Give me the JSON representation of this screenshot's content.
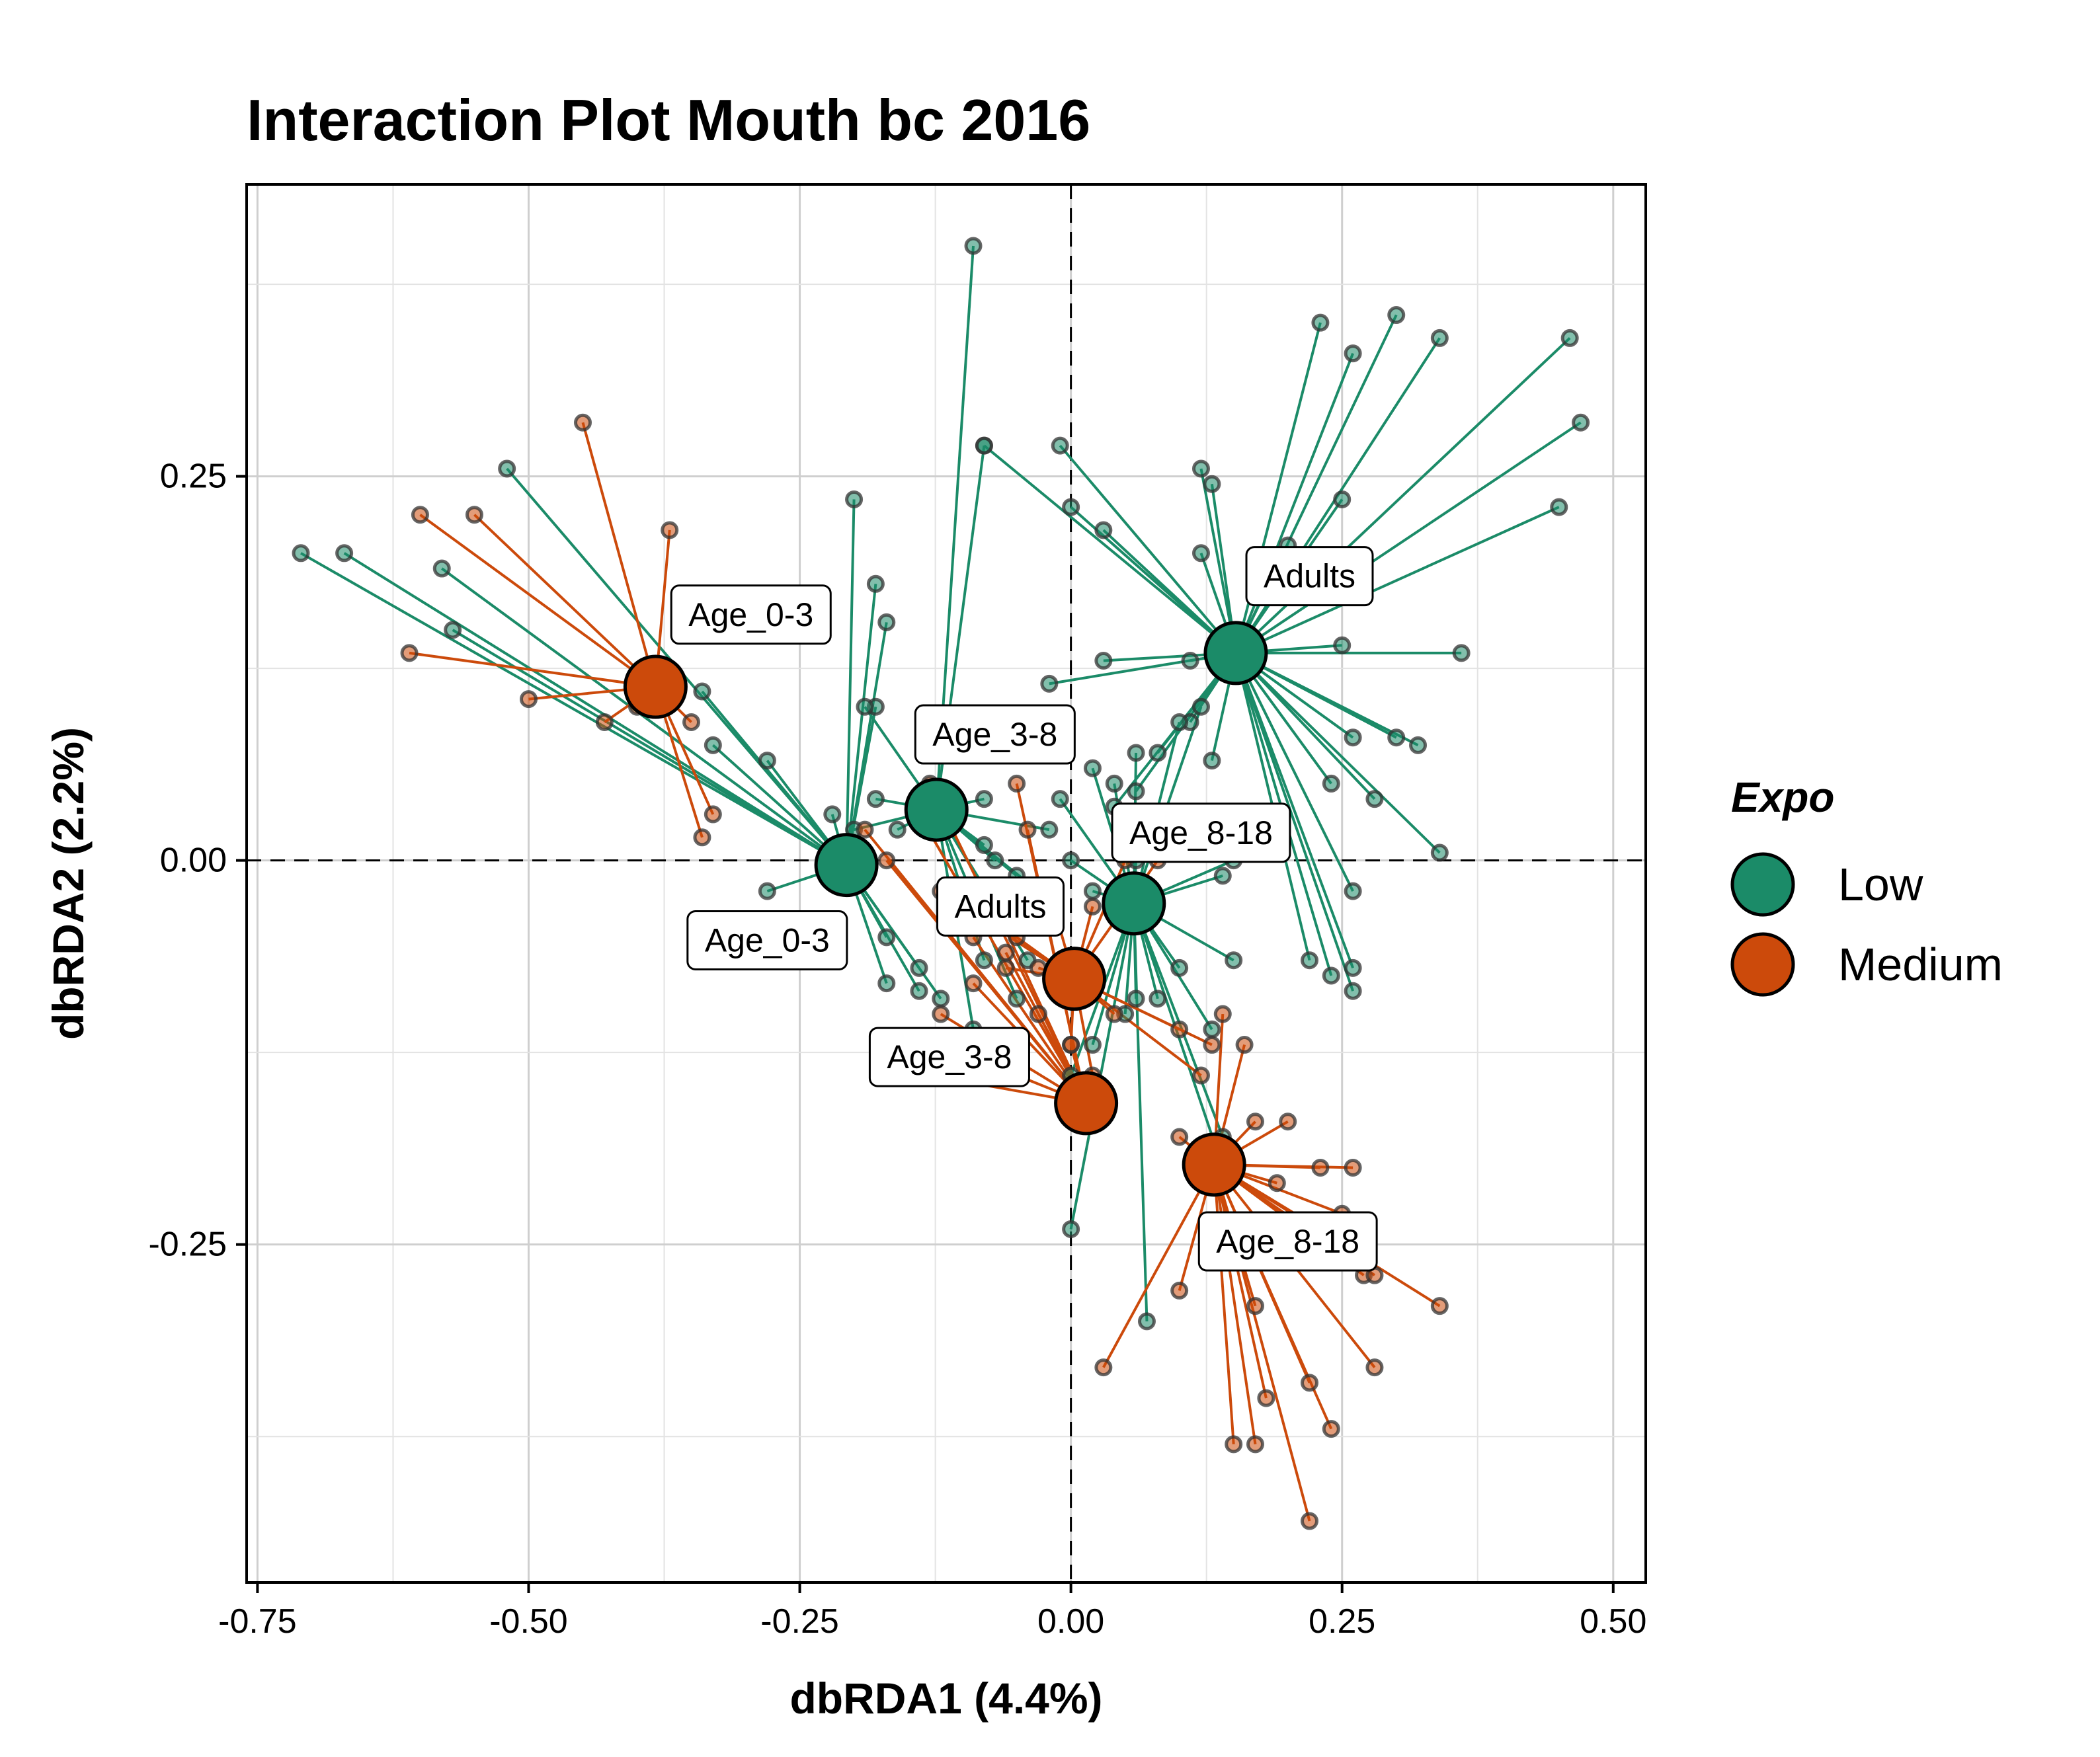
{
  "chart_data": {
    "type": "scatter",
    "title": "Interaction Plot Mouth bc 2016",
    "xlabel": "dbRDA1 (4.4%)",
    "ylabel": "dbRDA2 (2.2%)",
    "xlim": [
      -0.76,
      0.53
    ],
    "ylim": [
      -0.47,
      0.44
    ],
    "xticks": [
      -0.75,
      -0.5,
      -0.25,
      0.0,
      0.25,
      0.5
    ],
    "xtick_labels": [
      "-0.75",
      "-0.50",
      "-0.25",
      "0.00",
      "0.25",
      "0.50"
    ],
    "yticks": [
      -0.25,
      0.0,
      0.25
    ],
    "ytick_labels": [
      "-0.25",
      "0.00",
      "0.25"
    ],
    "grid": true,
    "reference_lines": {
      "x": 0,
      "y": 0,
      "style": "dashed"
    },
    "legend": {
      "title": "Expo",
      "placement": "right",
      "entries": [
        {
          "label": "Low",
          "color": "#1B8B68"
        },
        {
          "label": "Medium",
          "color": "#CC4A0B"
        }
      ]
    },
    "colors": {
      "Low": "#1B8B68",
      "Medium": "#CC4A0B"
    },
    "groups": [
      {
        "expo": "Low",
        "age": "Adults",
        "label": "Adults",
        "centroid": [
          0.152,
          0.135
        ],
        "label_pos": [
          0.22,
          0.185
        ],
        "points": [
          [
            0.23,
            0.35
          ],
          [
            0.26,
            0.33
          ],
          [
            0.3,
            0.355
          ],
          [
            0.34,
            0.34
          ],
          [
            0.46,
            0.34
          ],
          [
            0.47,
            0.285
          ],
          [
            0.45,
            0.23
          ],
          [
            0.36,
            0.135
          ],
          [
            0.25,
            0.235
          ],
          [
            0.2,
            0.205
          ],
          [
            0.12,
            0.255
          ],
          [
            0.13,
            0.245
          ],
          [
            0.12,
            0.2
          ],
          [
            0.03,
            0.215
          ],
          [
            0.0,
            0.23
          ],
          [
            -0.01,
            0.27
          ],
          [
            -0.08,
            0.27
          ],
          [
            0.03,
            0.13
          ],
          [
            -0.02,
            0.115
          ],
          [
            0.11,
            0.13
          ],
          [
            0.25,
            0.14
          ],
          [
            0.26,
            0.08
          ],
          [
            0.3,
            0.08
          ],
          [
            0.32,
            0.075
          ],
          [
            0.28,
            0.04
          ],
          [
            0.34,
            0.005
          ],
          [
            0.24,
            0.05
          ],
          [
            0.26,
            -0.02
          ],
          [
            0.26,
            -0.07
          ],
          [
            0.26,
            -0.085
          ],
          [
            0.24,
            -0.075
          ],
          [
            0.22,
            -0.065
          ],
          [
            0.13,
            0.065
          ],
          [
            0.11,
            0.09
          ],
          [
            0.08,
            0.07
          ],
          [
            0.06,
            0.045
          ],
          [
            0.04,
            0.035
          ]
        ]
      },
      {
        "expo": "Low",
        "age": "Age_0-3",
        "label": "Age_0-3",
        "centroid": [
          -0.207,
          -0.003
        ],
        "label_pos": [
          -0.28,
          -0.052
        ],
        "points": [
          [
            -0.71,
            0.2
          ],
          [
            -0.67,
            0.2
          ],
          [
            -0.58,
            0.19
          ],
          [
            -0.57,
            0.15
          ],
          [
            -0.52,
            0.255
          ],
          [
            -0.34,
            0.11
          ],
          [
            -0.33,
            0.075
          ],
          [
            -0.28,
            0.065
          ],
          [
            -0.18,
            0.1
          ],
          [
            -0.2,
            0.235
          ],
          [
            -0.18,
            0.18
          ],
          [
            -0.17,
            0.155
          ],
          [
            -0.22,
            0.03
          ],
          [
            -0.28,
            -0.02
          ],
          [
            -0.17,
            -0.05
          ],
          [
            -0.17,
            -0.08
          ],
          [
            -0.14,
            -0.07
          ],
          [
            -0.14,
            -0.085
          ],
          [
            -0.12,
            -0.09
          ]
        ]
      },
      {
        "expo": "Low",
        "age": "Age_3-8",
        "label": "Age_3-8",
        "centroid": [
          -0.124,
          0.033
        ],
        "label_pos": [
          -0.07,
          0.082
        ],
        "points": [
          [
            -0.09,
            0.4
          ],
          [
            -0.08,
            0.27
          ],
          [
            -0.19,
            0.1
          ],
          [
            -0.18,
            0.04
          ],
          [
            -0.2,
            0.02
          ],
          [
            -0.16,
            0.02
          ],
          [
            -0.08,
            0.04
          ],
          [
            -0.08,
            0.01
          ],
          [
            -0.07,
            0.0
          ],
          [
            -0.05,
            -0.01
          ],
          [
            -0.02,
            0.02
          ],
          [
            -0.03,
            -0.02
          ],
          [
            -0.06,
            -0.04
          ],
          [
            -0.08,
            -0.065
          ],
          [
            -0.04,
            -0.065
          ],
          [
            -0.09,
            -0.11
          ],
          [
            -0.05,
            -0.09
          ]
        ]
      },
      {
        "expo": "Low",
        "age": "Age_8-18",
        "label": "Age_8-18",
        "centroid": [
          0.058,
          -0.028
        ],
        "label_pos": [
          0.12,
          0.018
        ],
        "points": [
          [
            0.02,
            0.06
          ],
          [
            0.04,
            0.05
          ],
          [
            0.06,
            0.07
          ],
          [
            0.1,
            0.09
          ],
          [
            0.12,
            0.1
          ],
          [
            -0.01,
            0.04
          ],
          [
            0.0,
            0.0
          ],
          [
            0.02,
            -0.02
          ],
          [
            0.06,
            0.0
          ],
          [
            0.14,
            -0.01
          ],
          [
            0.15,
            0.0
          ],
          [
            0.06,
            -0.09
          ],
          [
            0.08,
            -0.09
          ],
          [
            0.1,
            -0.07
          ],
          [
            0.05,
            -0.1
          ],
          [
            0.02,
            -0.12
          ],
          [
            0.0,
            -0.14
          ],
          [
            0.0,
            -0.24
          ],
          [
            0.07,
            -0.3
          ],
          [
            0.13,
            -0.11
          ],
          [
            0.14,
            -0.18
          ],
          [
            0.14,
            -0.2
          ],
          [
            0.15,
            -0.065
          ]
        ]
      },
      {
        "expo": "Medium",
        "age": "Adults",
        "label": "Adults",
        "centroid": [
          0.003,
          -0.077
        ],
        "label_pos": [
          -0.065,
          -0.03
        ],
        "points": [
          [
            -0.12,
            -0.02
          ],
          [
            -0.1,
            -0.03
          ],
          [
            -0.07,
            -0.04
          ],
          [
            -0.05,
            -0.05
          ],
          [
            -0.03,
            -0.07
          ],
          [
            -0.06,
            -0.07
          ],
          [
            -0.02,
            -0.02
          ],
          [
            0.02,
            -0.03
          ],
          [
            0.05,
            0.0
          ],
          [
            0.08,
            0.0
          ],
          [
            0.04,
            -0.1
          ],
          [
            0.1,
            -0.11
          ],
          [
            0.13,
            -0.12
          ],
          [
            0.12,
            -0.14
          ],
          [
            0.02,
            -0.14
          ],
          [
            0.0,
            -0.12
          ]
        ]
      },
      {
        "expo": "Medium",
        "age": "Age_0-3",
        "label": "Age_0-3",
        "centroid": [
          -0.383,
          0.113
        ],
        "label_pos": [
          -0.295,
          0.16
        ],
        "points": [
          [
            -0.45,
            0.285
          ],
          [
            -0.37,
            0.215
          ],
          [
            -0.6,
            0.225
          ],
          [
            -0.55,
            0.225
          ],
          [
            -0.61,
            0.135
          ],
          [
            -0.5,
            0.105
          ],
          [
            -0.43,
            0.09
          ],
          [
            -0.4,
            0.1
          ],
          [
            -0.35,
            0.09
          ],
          [
            -0.33,
            0.03
          ],
          [
            -0.34,
            0.015
          ]
        ]
      },
      {
        "expo": "Medium",
        "age": "Age_3-8",
        "label": "Age_3-8",
        "centroid": [
          0.014,
          -0.158
        ],
        "label_pos": [
          -0.112,
          -0.128
        ],
        "points": [
          [
            -0.13,
            -0.14
          ],
          [
            -0.12,
            -0.12
          ],
          [
            -0.12,
            -0.1
          ],
          [
            -0.09,
            -0.05
          ],
          [
            -0.07,
            -0.03
          ],
          [
            -0.05,
            0.05
          ],
          [
            -0.04,
            0.02
          ],
          [
            -0.14,
            0.03
          ],
          [
            -0.17,
            0.0
          ],
          [
            -0.19,
            0.02
          ],
          [
            -0.13,
            0.05
          ],
          [
            -0.09,
            -0.08
          ],
          [
            0.0,
            -0.12
          ],
          [
            -0.03,
            -0.1
          ],
          [
            -0.06,
            -0.06
          ]
        ]
      },
      {
        "expo": "Medium",
        "age": "Age_8-18",
        "label": "Age_8-18",
        "centroid": [
          0.132,
          -0.198
        ],
        "label_pos": [
          0.2,
          -0.248
        ],
        "points": [
          [
            0.1,
            -0.18
          ],
          [
            0.14,
            -0.2
          ],
          [
            0.17,
            -0.17
          ],
          [
            0.19,
            -0.21
          ],
          [
            0.23,
            -0.2
          ],
          [
            0.26,
            -0.2
          ],
          [
            0.23,
            -0.24
          ],
          [
            0.25,
            -0.23
          ],
          [
            0.27,
            -0.27
          ],
          [
            0.28,
            -0.27
          ],
          [
            0.34,
            -0.29
          ],
          [
            0.28,
            -0.33
          ],
          [
            0.24,
            -0.37
          ],
          [
            0.22,
            -0.34
          ],
          [
            0.18,
            -0.35
          ],
          [
            0.17,
            -0.38
          ],
          [
            0.15,
            -0.38
          ],
          [
            0.17,
            -0.29
          ],
          [
            0.1,
            -0.28
          ],
          [
            0.03,
            -0.33
          ],
          [
            0.22,
            -0.43
          ],
          [
            0.14,
            -0.1
          ],
          [
            0.16,
            -0.12
          ],
          [
            0.2,
            -0.17
          ]
        ]
      }
    ]
  }
}
